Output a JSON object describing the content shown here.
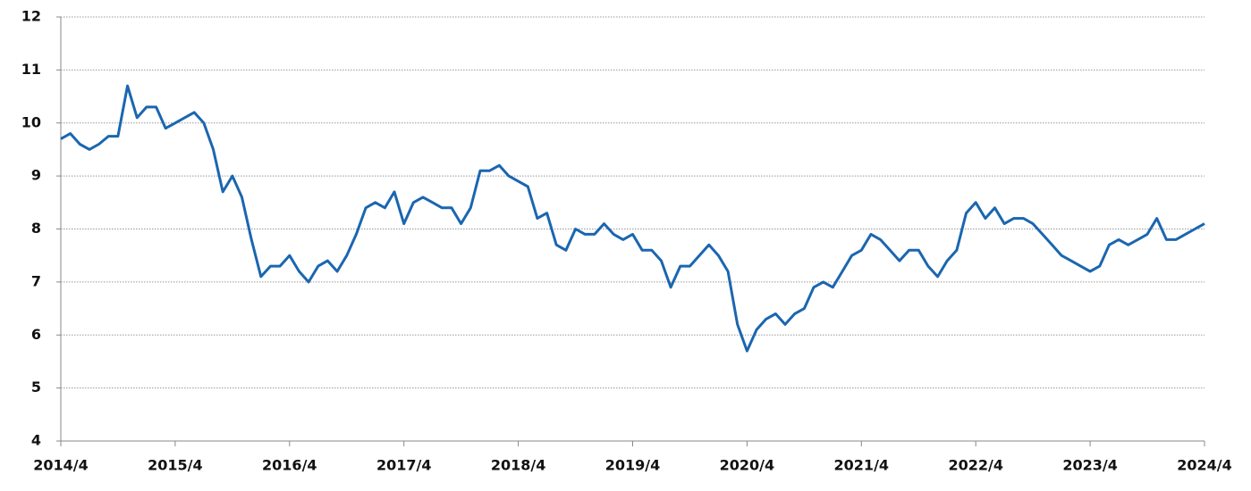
{
  "chart_data": {
    "type": "line",
    "x": [
      "2014/4",
      "2014/5",
      "2014/6",
      "2014/7",
      "2014/8",
      "2014/9",
      "2014/10",
      "2014/11",
      "2014/12",
      "2015/1",
      "2015/2",
      "2015/3",
      "2015/4",
      "2015/5",
      "2015/6",
      "2015/7",
      "2015/8",
      "2015/9",
      "2015/10",
      "2015/11",
      "2015/12",
      "2016/1",
      "2016/2",
      "2016/3",
      "2016/4",
      "2016/5",
      "2016/6",
      "2016/7",
      "2016/8",
      "2016/9",
      "2016/10",
      "2016/11",
      "2016/12",
      "2017/1",
      "2017/2",
      "2017/3",
      "2017/4",
      "2017/5",
      "2017/6",
      "2017/7",
      "2017/8",
      "2017/9",
      "2017/10",
      "2017/11",
      "2017/12",
      "2018/1",
      "2018/2",
      "2018/3",
      "2018/4",
      "2018/5",
      "2018/6",
      "2018/7",
      "2018/8",
      "2018/9",
      "2018/10",
      "2018/11",
      "2018/12",
      "2019/1",
      "2019/2",
      "2019/3",
      "2019/4",
      "2019/5",
      "2019/6",
      "2019/7",
      "2019/8",
      "2019/9",
      "2019/10",
      "2019/11",
      "2019/12",
      "2020/1",
      "2020/2",
      "2020/3",
      "2020/4",
      "2020/5",
      "2020/6",
      "2020/7",
      "2020/8",
      "2020/9",
      "2020/10",
      "2020/11",
      "2020/12",
      "2021/1",
      "2021/2",
      "2021/3",
      "2021/4",
      "2021/5",
      "2021/6",
      "2021/7",
      "2021/8",
      "2021/9",
      "2021/10",
      "2021/11",
      "2021/12",
      "2022/1",
      "2022/2",
      "2022/3",
      "2022/4",
      "2022/5",
      "2022/6",
      "2022/7",
      "2022/8",
      "2022/9",
      "2022/10",
      "2022/11",
      "2022/12",
      "2023/1",
      "2023/2",
      "2023/3",
      "2023/4",
      "2023/5",
      "2023/6",
      "2023/7",
      "2023/8",
      "2023/9",
      "2023/10",
      "2023/11",
      "2023/12",
      "2024/1",
      "2024/2",
      "2024/3",
      "2024/4"
    ],
    "series": [
      {
        "color": "#1a66b0",
        "values": [
          9.7,
          9.8,
          9.6,
          9.5,
          9.6,
          9.75,
          9.75,
          10.7,
          10.1,
          10.3,
          10.3,
          9.9,
          10.0,
          10.1,
          10.2,
          10.0,
          9.5,
          8.7,
          9.0,
          8.6,
          7.8,
          7.1,
          7.3,
          7.3,
          7.5,
          7.2,
          7.0,
          7.3,
          7.4,
          7.2,
          7.5,
          7.9,
          8.4,
          8.5,
          8.4,
          8.7,
          8.1,
          8.5,
          8.6,
          8.5,
          8.4,
          8.4,
          8.1,
          8.4,
          9.1,
          9.1,
          9.2,
          9.0,
          8.9,
          8.8,
          8.2,
          8.3,
          7.7,
          7.6,
          8.0,
          7.9,
          7.9,
          8.1,
          7.9,
          7.8,
          7.9,
          7.6,
          7.6,
          7.4,
          6.9,
          7.3,
          7.3,
          7.5,
          7.7,
          7.5,
          7.2,
          6.2,
          5.7,
          6.1,
          6.3,
          6.4,
          6.2,
          6.4,
          6.5,
          6.9,
          7.0,
          6.9,
          7.2,
          7.5,
          7.6,
          7.9,
          7.8,
          7.6,
          7.4,
          7.6,
          7.6,
          7.3,
          7.1,
          7.4,
          7.6,
          8.3,
          8.5,
          8.2,
          8.4,
          8.1,
          8.2,
          8.2,
          8.1,
          7.9,
          7.7,
          7.5,
          7.4,
          7.3,
          7.2,
          7.3,
          7.7,
          7.8,
          7.7,
          7.8,
          7.9,
          8.2,
          7.8,
          7.8,
          7.9,
          8.0,
          8.1
        ]
      }
    ],
    "xticks": [
      "2014/4",
      "2015/4",
      "2016/4",
      "2017/4",
      "2018/4",
      "2019/4",
      "2020/4",
      "2021/4",
      "2022/4",
      "2023/4",
      "2024/4"
    ],
    "ylim": [
      4,
      12
    ],
    "yticks": [
      4,
      5,
      6,
      7,
      8,
      9,
      10,
      11,
      12
    ],
    "grid": true
  }
}
